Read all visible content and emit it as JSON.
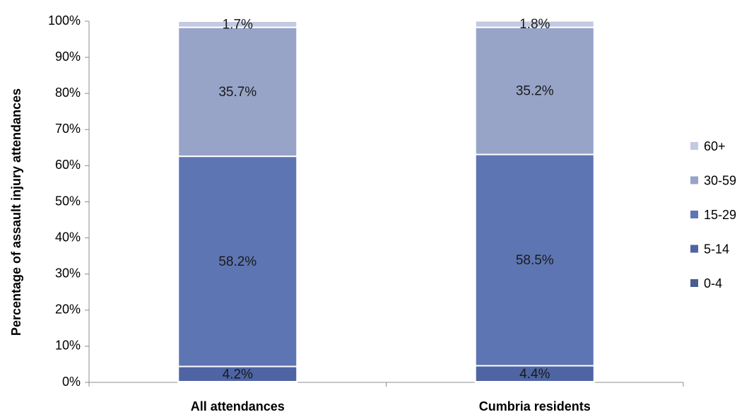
{
  "chart_data": {
    "type": "bar",
    "stacked": true,
    "ylabel": "Percentage of assault injury attendances",
    "xlabel": "",
    "ylim": [
      0,
      100
    ],
    "ytick_labels": [
      "0%",
      "10%",
      "20%",
      "30%",
      "40%",
      "50%",
      "60%",
      "70%",
      "80%",
      "90%",
      "100%"
    ],
    "categories": [
      "All attendances",
      "Cumbria residents"
    ],
    "series": [
      {
        "name": "0-4",
        "color": "#4a5c91",
        "values": [
          0.2,
          0.2
        ]
      },
      {
        "name": "5-14",
        "color": "#4e64a3",
        "values": [
          4.2,
          4.4
        ],
        "labels": [
          "4.2%",
          "4.4%"
        ]
      },
      {
        "name": "15-29",
        "color": "#5e75b3",
        "values": [
          58.2,
          58.5
        ],
        "labels": [
          "58.2%",
          "58.5%"
        ]
      },
      {
        "name": "30-59",
        "color": "#97a4c8",
        "values": [
          35.7,
          35.2
        ],
        "labels": [
          "35.7%",
          "35.2%"
        ]
      },
      {
        "name": "60+",
        "color": "#c3c9e0",
        "values": [
          1.7,
          1.8
        ],
        "labels": [
          "1.7%",
          "1.8%"
        ]
      }
    ],
    "legend": {
      "position": "right",
      "order": [
        "60+",
        "30-59",
        "15-29",
        "5-14",
        "0-4"
      ]
    },
    "grid": false
  }
}
